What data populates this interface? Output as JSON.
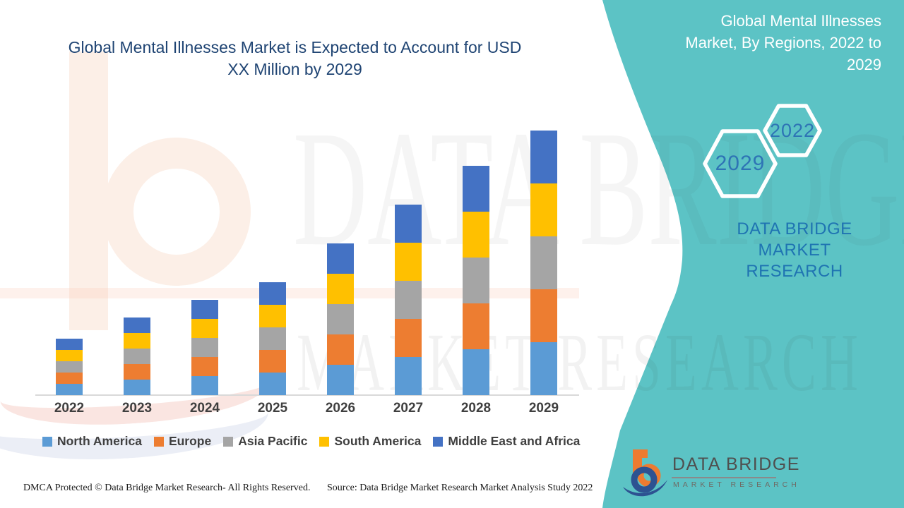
{
  "page": {
    "background": "#FFFFFF",
    "accent_teal": "#5CC3C5"
  },
  "header": {
    "title_line1": "Global Mental Illnesses Market is Expected to Account for USD",
    "title_line2": "XX Million by 2029",
    "title_color": "#1F4473"
  },
  "side_panel": {
    "title_line1": "Global Mental Illnesses",
    "title_line2": "Market, By Regions, 2022 to",
    "title_line3": "2029",
    "hexagon_back_label": "2029",
    "hexagon_front_label": "2022",
    "hexagon_label_color": "#2E74B5",
    "brand_line1": "DATA BRIDGE MARKET",
    "brand_line2": "RESEARCH",
    "brand_color": "#1F74B2"
  },
  "chart_data": {
    "type": "bar",
    "stacked": true,
    "title": "Global Mental Illnesses Market, By Regions, 2022 to 2029",
    "categories": [
      "2022",
      "2023",
      "2024",
      "2025",
      "2026",
      "2027",
      "2028",
      "2029"
    ],
    "series": [
      {
        "name": "North America",
        "color": "#5B9BD5",
        "values": [
          16,
          22,
          27,
          32,
          43,
          54,
          65,
          75
        ]
      },
      {
        "name": "Europe",
        "color": "#ED7D31",
        "values": [
          16,
          22,
          27,
          32,
          43,
          54,
          65,
          75
        ]
      },
      {
        "name": "Asia Pacific",
        "color": "#A5A5A5",
        "values": [
          16,
          22,
          27,
          32,
          43,
          54,
          65,
          75
        ]
      },
      {
        "name": "South America",
        "color": "#FFC000",
        "values": [
          16,
          22,
          27,
          32,
          43,
          54,
          65,
          75
        ]
      },
      {
        "name": "Middle East and Africa",
        "color": "#4472C4",
        "values": [
          16,
          22,
          27,
          32,
          43,
          54,
          65,
          75
        ]
      }
    ],
    "value_axis": "unlabeled - no numeric axis shown; values are relative units (stack totals grow from about 80 in 2022 to 375 in 2029)",
    "xlabel": "",
    "ylabel": "",
    "grid": false,
    "legend_position": "bottom",
    "axis_line_color": "#D9D9D9",
    "label_color": "#3F3F3F"
  },
  "watermarks": {
    "big_text_top": "DATA BRIDGE",
    "big_text_bottom": "MARKET RESEARCH"
  },
  "footer": {
    "dmca": "DMCA Protected © Data Bridge Market Research- All Rights Reserved.",
    "source": "Source: Data Bridge Market Research Market Analysis Study 2022"
  },
  "logo": {
    "name": "DATA BRIDGE",
    "subtitle": "MARKET RESEARCH"
  }
}
